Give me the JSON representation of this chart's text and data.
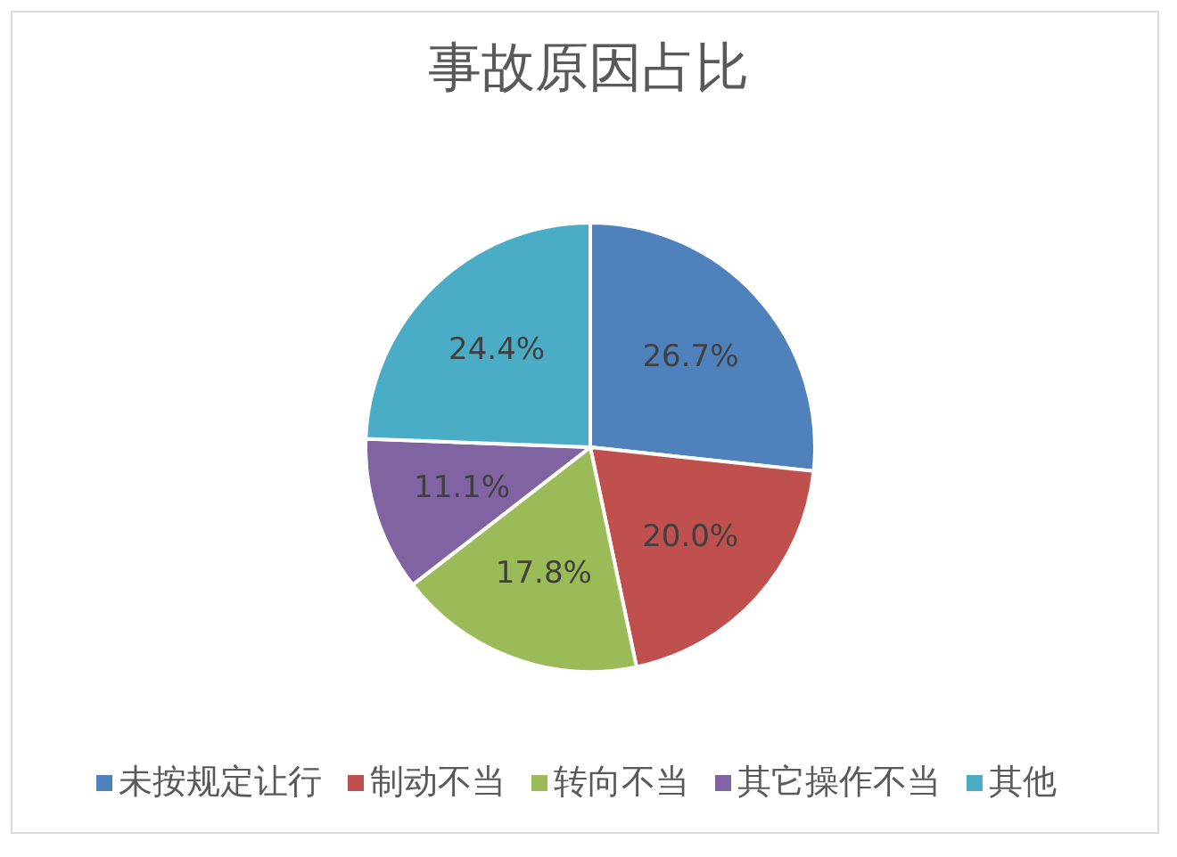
{
  "chart_data": {
    "type": "pie",
    "title": "事故原因占比",
    "categories": [
      "未按规定让行",
      "制动不当",
      "转向不当",
      "其它操作不当",
      "其他"
    ],
    "values": [
      26.7,
      20.0,
      17.8,
      11.1,
      24.4
    ],
    "colors": [
      "#4f81bd",
      "#c0504d",
      "#9bbb59",
      "#8064a2",
      "#4bacc6"
    ],
    "value_labels": [
      "26.7%",
      "20.0%",
      "17.8%",
      "11.1%",
      "24.4%"
    ],
    "legend": "bottom"
  }
}
